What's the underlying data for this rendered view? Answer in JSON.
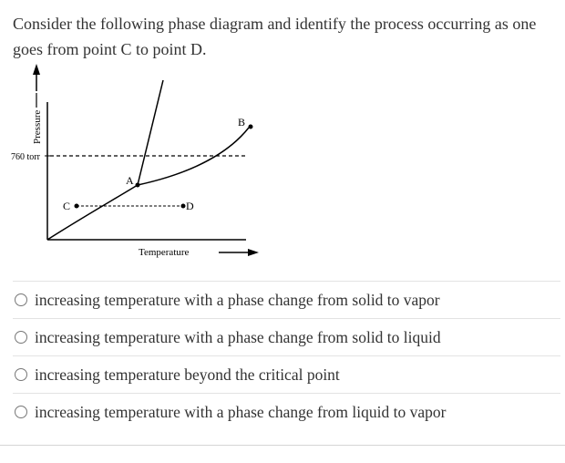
{
  "question": {
    "text": "Consider the following phase diagram and identify the process occurring as one goes from point C to point D."
  },
  "diagram": {
    "y_axis_label": "Pressure",
    "x_axis_label": "Temperature",
    "pressure_reference_label": "760 torr",
    "points": {
      "a": "A",
      "b": "B",
      "c": "C",
      "d": "D"
    }
  },
  "options": [
    {
      "label": "increasing temperature with a phase change from solid to vapor"
    },
    {
      "label": "increasing temperature with a phase change from solid to liquid"
    },
    {
      "label": "increasing temperature beyond the critical point"
    },
    {
      "label": "increasing temperature with a phase change from liquid to vapor"
    }
  ]
}
